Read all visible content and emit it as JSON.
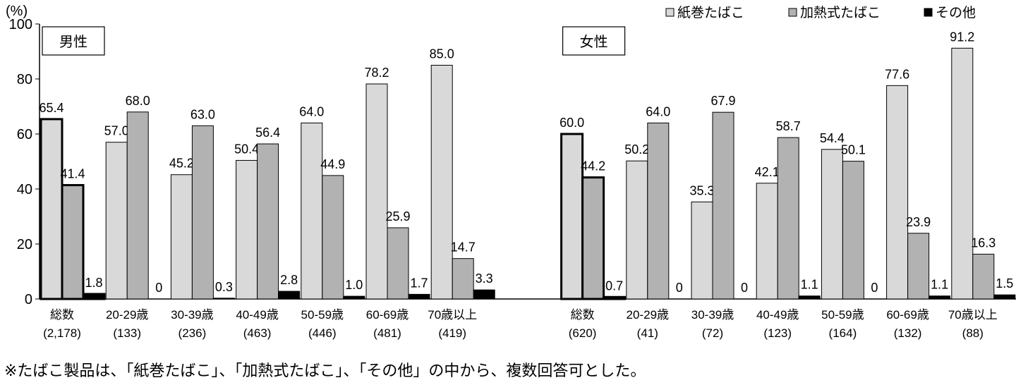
{
  "chart_data": {
    "type": "bar",
    "ylabel": "(%)",
    "ylim": [
      0,
      100
    ],
    "yticks": [
      0,
      20,
      40,
      60,
      80,
      100
    ],
    "grid": false,
    "legend_placement": "top-right",
    "panels": [
      {
        "label": "男性",
        "categories": [
          [
            "総数",
            "(2,178)"
          ],
          [
            "20-29歳",
            "(133)"
          ],
          [
            "30-39歳",
            "(236)"
          ],
          [
            "40-49歳",
            "(463)"
          ],
          [
            "50-59歳",
            "(446)"
          ],
          [
            "60-69歳",
            "(481)"
          ],
          [
            "70歳以上",
            "(419)"
          ]
        ],
        "series": [
          {
            "name": "紙巻たばこ",
            "values": [
              65.4,
              57.0,
              45.2,
              50.4,
              64.0,
              78.2,
              85.0
            ]
          },
          {
            "name": "加熱式たばこ",
            "values": [
              41.4,
              68.0,
              63.0,
              56.4,
              44.9,
              25.9,
              14.7
            ]
          },
          {
            "name": "その他",
            "values": [
              1.8,
              0,
              0.3,
              2.8,
              1.0,
              1.7,
              3.3
            ]
          }
        ]
      },
      {
        "label": "女性",
        "categories": [
          [
            "総数",
            "(620)"
          ],
          [
            "20-29歳",
            "(41)"
          ],
          [
            "30-39歳",
            "(72)"
          ],
          [
            "40-49歳",
            "(123)"
          ],
          [
            "50-59歳",
            "(164)"
          ],
          [
            "60-69歳",
            "(132)"
          ],
          [
            "70歳以上",
            "(88)"
          ]
        ],
        "series": [
          {
            "name": "紙巻たばこ",
            "values": [
              60.0,
              50.2,
              35.3,
              42.1,
              54.4,
              77.6,
              91.2
            ]
          },
          {
            "name": "加熱式たばこ",
            "values": [
              44.2,
              64.0,
              67.9,
              58.7,
              50.1,
              23.9,
              16.3
            ]
          },
          {
            "name": "その他",
            "values": [
              0.7,
              0,
              0,
              1.1,
              0,
              1.1,
              1.5
            ]
          }
        ]
      }
    ],
    "series_colors": [
      "#d9d9d9",
      "#b2b2b2",
      "#000000"
    ],
    "legend": [
      "紙巻たばこ",
      "加熱式たばこ",
      "その他"
    ]
  },
  "footnote": "※たばこ製品は、「紙巻たばこ」、「加熱式たばこ」、「その他」の中から、複数回答可とした。"
}
